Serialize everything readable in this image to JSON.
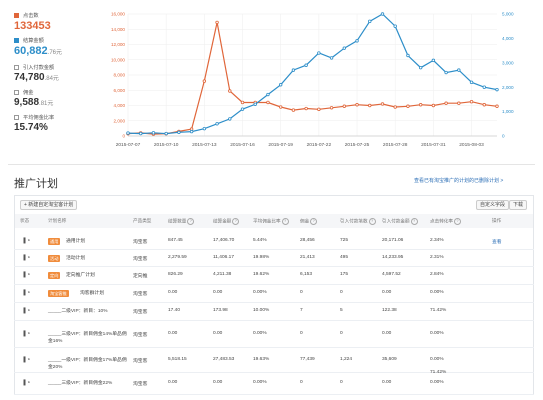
{
  "metrics": [
    {
      "label": "点击数",
      "value": "133453",
      "unit": "",
      "checked": true,
      "color": "#e0663a"
    },
    {
      "label": "结算金额",
      "value": "60,882",
      "unit": ".76元",
      "checked": true,
      "color": "#2d8ec9"
    },
    {
      "label": "引入付款金额",
      "value": "74,780",
      "unit": ".84元",
      "checked": false
    },
    {
      "label": "佣金",
      "value": "9,588",
      "unit": ".81元",
      "checked": false
    },
    {
      "label": "平均佣金比率",
      "value": "15.74%",
      "unit": "",
      "checked": false
    }
  ],
  "chart_data": {
    "type": "line",
    "x": [
      "2015-07-07",
      "2015-07-08",
      "2015-07-09",
      "2015-07-10",
      "2015-07-11",
      "2015-07-12",
      "2015-07-13",
      "2015-07-14",
      "2015-07-15",
      "2015-07-16",
      "2015-07-17",
      "2015-07-18",
      "2015-07-19",
      "2015-07-20",
      "2015-07-21",
      "2015-07-22",
      "2015-07-23",
      "2015-07-24",
      "2015-07-25",
      "2015-07-26",
      "2015-07-27",
      "2015-07-28",
      "2015-07-29",
      "2015-07-30",
      "2015-07-31",
      "2015-08-01",
      "2015-08-02",
      "2015-08-03",
      "2015-08-04",
      "2015-08-05"
    ],
    "x_tick_labels": [
      "2015-07-07",
      "2015-07-10",
      "2015-07-13",
      "2015-07-16",
      "2015-07-19",
      "2015-07-22",
      "2015-07-25",
      "2015-07-28",
      "2015-07-31",
      "2015-08-03"
    ],
    "left_axis": {
      "ticks": [
        "0",
        "2,000",
        "4,000",
        "6,000",
        "8,000",
        "10,000",
        "12,000",
        "14,000",
        "16,000"
      ],
      "lim": [
        0,
        16000
      ],
      "color": "#e0663a"
    },
    "right_axis": {
      "ticks": [
        "0",
        "1,000",
        "2,000",
        "3,000",
        "4,000",
        "5,000"
      ],
      "lim": [
        0,
        5000
      ],
      "color": "#2d8ec9"
    },
    "grid": true,
    "series": [
      {
        "name": "点击数",
        "axis": "left",
        "color": "#e0663a",
        "values": [
          300,
          400,
          250,
          300,
          600,
          900,
          7200,
          14900,
          5900,
          4400,
          4400,
          4400,
          3800,
          3400,
          3600,
          3500,
          3700,
          3900,
          4100,
          4000,
          4200,
          3800,
          3900,
          4100,
          4000,
          4300,
          4300,
          4500,
          4100,
          3900
        ]
      },
      {
        "name": "结算金额",
        "axis": "right",
        "color": "#2d8ec9",
        "values": [
          120,
          100,
          130,
          100,
          150,
          180,
          300,
          500,
          700,
          1100,
          1300,
          1700,
          2100,
          2700,
          2900,
          3400,
          3200,
          3600,
          3900,
          4700,
          5000,
          4500,
          3300,
          2800,
          3100,
          2600,
          2700,
          2200,
          2000,
          1900
        ]
      }
    ]
  },
  "plans": {
    "title": "推广计划",
    "history_link": "查看已有淘宝推广的计划的已删除计划 >",
    "new_button": "+ 新建自定淘宝客计划",
    "customize_button": "自定义字段",
    "download_button": "下载",
    "headers": [
      "状态",
      "计划名称",
      "产品类型",
      "结算数量",
      "结算金额",
      "平均佣金比率",
      "佣金",
      "引入付款笔数",
      "引入付款金额",
      "点击转化率",
      "操作"
    ],
    "rows": [
      {
        "tag": "通用",
        "name": "通用计划",
        "type": "淘宝客",
        "qty": "847.45",
        "amount": "17,406.70",
        "rate": "5.44%",
        "commission": "28,456",
        "orders": "725",
        "pay": "20,171.06",
        "cvr": "2.34%",
        "op": "查看"
      },
      {
        "tag": "活动",
        "name": "活动计划",
        "type": "淘宝客",
        "qty": "2,279.59",
        "amount": "11,406.17",
        "rate": "19.98%",
        "commission": "21,413",
        "orders": "495",
        "pay": "14,233.95",
        "cvr": "2.31%",
        "op": ""
      },
      {
        "tag": "定向",
        "name": "定向推广计划",
        "type": "定向推",
        "qty": "826.29",
        "amount": "4,211.38",
        "rate": "19.62%",
        "commission": "6,153",
        "orders": "175",
        "pay": "4,597.52",
        "cvr": "2.84%",
        "op": ""
      },
      {
        "tag": "淘宝客推",
        "name": "淘客群计划",
        "type": "淘宝客",
        "qty": "0.00",
        "amount": "0.00",
        "rate": "0.00%",
        "commission": "0",
        "orders": "0",
        "pay": "0.00",
        "cvr": "0.00%",
        "op": ""
      },
      {
        "tag": "",
        "name": "_____二级VIP：新目：10%",
        "type": "淘宝客",
        "qty": "17.40",
        "amount": "173.98",
        "rate": "10.00%",
        "commission": "7",
        "orders": "5",
        "pay": "122.38",
        "cvr": "71.42%",
        "op": ""
      },
      {
        "tag": "",
        "name": "_____三级VIP：新目佣金14%单品佣金16%",
        "type": "淘宝客",
        "qty": "0.00",
        "amount": "0.00",
        "rate": "0.00%",
        "commission": "0",
        "orders": "0",
        "pay": "0.00",
        "cvr": "0.00%",
        "op": ""
      },
      {
        "tag": "",
        "name": "_____一级VIP：新目佣金17%单品佣金20%",
        "type": "淘宝客",
        "qty": "5,518.15",
        "amount": "27,483.53",
        "rate": "19.63%",
        "commission": "77,439",
        "orders": "1,224",
        "pay": "35,609",
        "cvr": "0.00%",
        "cvr2": "71.42%",
        "op": ""
      },
      {
        "tag": "",
        "name": "_____三级VIP：新目佣金22%",
        "type": "淘宝客",
        "qty": "0.00",
        "amount": "0.00",
        "rate": "0.00%",
        "commission": "0",
        "orders": "0",
        "pay": "0.00",
        "cvr": "0.00%",
        "op": ""
      }
    ]
  }
}
